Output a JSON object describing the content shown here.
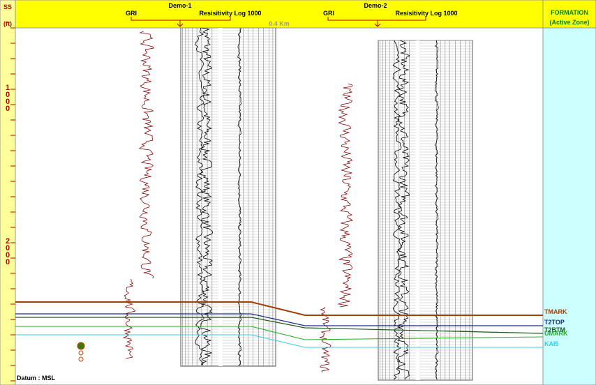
{
  "ruler": {
    "title": "SS",
    "unit": "(ft)",
    "depth_labels": [
      "1000",
      "2000"
    ]
  },
  "scale_label": "0.4 Km",
  "wells": [
    {
      "name": "Demo-1",
      "left_log": "GRI",
      "right_log": "Resisitivity Log 1000"
    },
    {
      "name": "Demo-2",
      "left_log": "GRI",
      "right_log": "Resisitivity Log 1000"
    }
  ],
  "formation_panel": {
    "title": "FORMATION",
    "subtitle": "(Active Zone)"
  },
  "formations": [
    "TMARK",
    "T2TOP",
    "T2BTM",
    "UMARK",
    "KAI5"
  ],
  "datum": "Datum : MSL"
}
